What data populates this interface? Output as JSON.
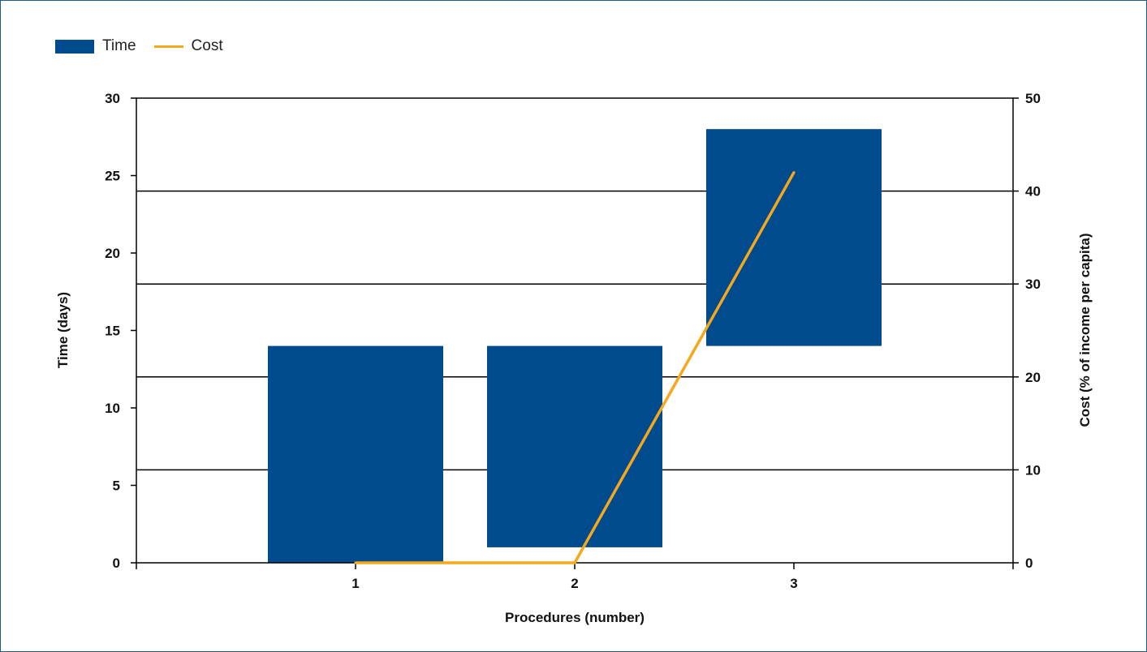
{
  "chart_data": {
    "type": "bar",
    "title": "",
    "xlabel": "Procedures (number)",
    "ylabel": "Time (days)",
    "y2label": "Cost (% of income per capita)",
    "categories": [
      "1",
      "2",
      "3"
    ],
    "xlim": [
      0,
      4
    ],
    "ylim": [
      0,
      30
    ],
    "y2lim": [
      0,
      50
    ],
    "yticks": [
      "0",
      "5",
      "10",
      "15",
      "20",
      "25",
      "30"
    ],
    "y2ticks": [
      "0",
      "10",
      "20",
      "30",
      "40",
      "50"
    ],
    "legend_position": "top-left",
    "grid": true,
    "series": [
      {
        "name": "Time",
        "kind": "floating-bar",
        "axis": "left",
        "color": "#004b8d",
        "ranges": [
          [
            0,
            14
          ],
          [
            1,
            14
          ],
          [
            14,
            28
          ]
        ]
      },
      {
        "name": "Cost",
        "kind": "line",
        "axis": "right",
        "color": "#f5a81c",
        "values": [
          0,
          0,
          42
        ]
      }
    ]
  }
}
